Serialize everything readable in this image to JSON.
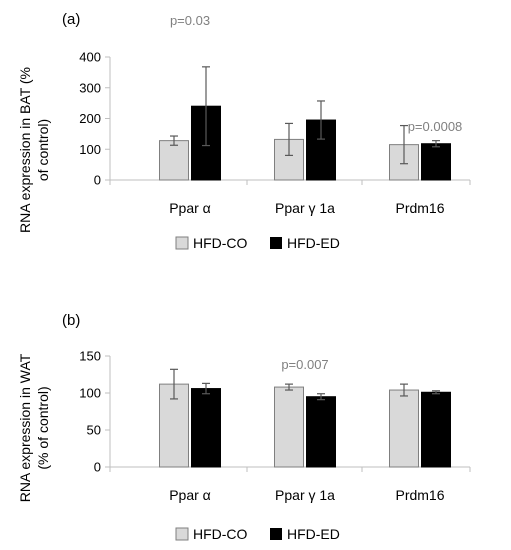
{
  "colors": {
    "HFD-CO": "#d9d9d9",
    "HFD-ED": "#000000",
    "axis": "#bfbfbf",
    "errorbar": "#595959",
    "annotation": "#808080"
  },
  "chart_data": [
    {
      "type": "bar",
      "panel_label": "(a)",
      "ylabel_lines": [
        "RNA expression in BAT (%",
        "of control)"
      ],
      "categories": [
        "Ppar α",
        "Ppar γ 1a",
        "Prdm16"
      ],
      "ylim": [
        0,
        400
      ],
      "yticks": [
        0,
        100,
        200,
        300,
        400
      ],
      "grid": false,
      "legend_position": "bottom",
      "series": [
        {
          "name": "HFD-CO",
          "values": [
            128,
            132,
            115
          ],
          "errors": [
            15,
            52,
            62
          ]
        },
        {
          "name": "HFD-ED",
          "values": [
            240,
            195,
            118
          ],
          "errors": [
            128,
            62,
            10
          ]
        }
      ],
      "annotations": [
        {
          "text": "p=0.03",
          "category_index": 0
        },
        {
          "text": "p=0.0008",
          "category_index": 2
        }
      ]
    },
    {
      "type": "bar",
      "panel_label": "(b)",
      "ylabel_lines": [
        "RNA expression in WAT",
        "(% of control)"
      ],
      "categories": [
        "Ppar α",
        "Ppar γ 1a",
        "Prdm16"
      ],
      "ylim": [
        0,
        150
      ],
      "yticks": [
        0,
        50,
        100,
        150
      ],
      "grid": false,
      "legend_position": "bottom",
      "series": [
        {
          "name": "HFD-CO",
          "values": [
            112,
            108,
            104
          ],
          "errors": [
            20,
            4,
            8
          ]
        },
        {
          "name": "HFD-ED",
          "values": [
            106,
            95,
            101
          ],
          "errors": [
            7,
            4,
            2
          ]
        }
      ],
      "annotations": [
        {
          "text": "p=0.007",
          "category_index": 1
        }
      ]
    }
  ]
}
